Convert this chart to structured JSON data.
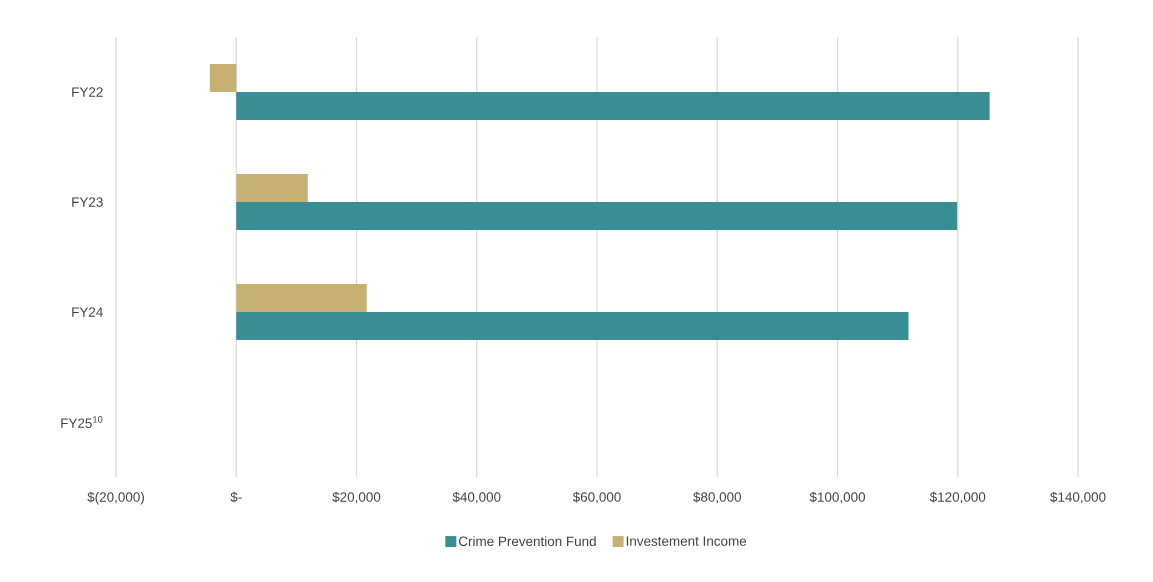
{
  "chart_data": {
    "type": "bar",
    "orientation": "horizontal",
    "categories": [
      "FY22",
      "FY23",
      "FY24",
      "FY25$^{10}$"
    ],
    "series": [
      {
        "name": "Crime Prevention Fund",
        "color": "#388e93",
        "values": [
          125300,
          119900,
          111800,
          null
        ]
      },
      {
        "name": "Investement Income",
        "color": "#c6b173",
        "values": [
          -4400,
          11900,
          21700,
          null
        ]
      }
    ],
    "xlim": [
      -20000,
      140000
    ],
    "xticks": [
      {
        "value": -20000,
        "label": "$(20,000)"
      },
      {
        "value": 0,
        "label": "$-"
      },
      {
        "value": 20000,
        "label": "$20,000"
      },
      {
        "value": 40000,
        "label": "$40,000"
      },
      {
        "value": 60000,
        "label": "$60,000"
      },
      {
        "value": 80000,
        "label": "$80,000"
      },
      {
        "value": 100000,
        "label": "$100,000"
      },
      {
        "value": 120000,
        "label": "$120,000"
      },
      {
        "value": 140000,
        "label": "$140,000"
      }
    ],
    "grid": "x",
    "legend": "bottom"
  }
}
